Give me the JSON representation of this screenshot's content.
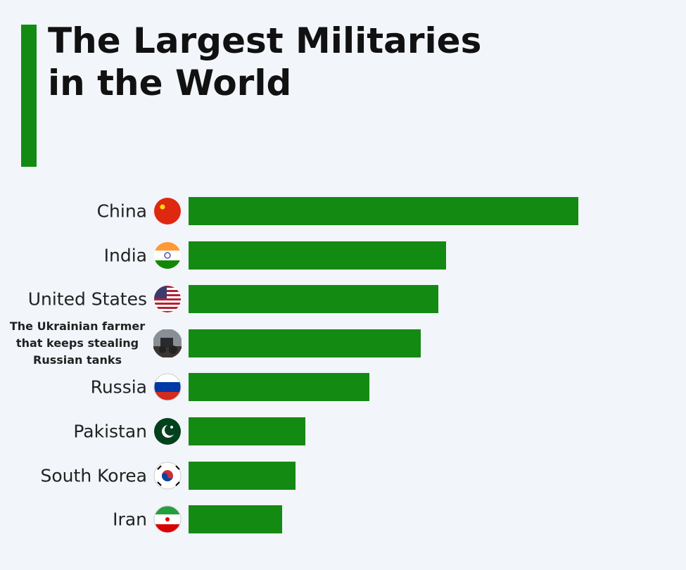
{
  "chart_data": {
    "type": "bar",
    "orientation": "horizontal",
    "title": "The Largest Militaries in the World",
    "categories": [
      "China",
      "India",
      "United States",
      "The Ukrainian farmer that keeps stealing Russian tanks",
      "Russia",
      "Pakistan",
      "South Korea",
      "Iran"
    ],
    "values": [
      2035,
      1344,
      1304,
      1212,
      944,
      610,
      558,
      489
    ],
    "color": "#138a12"
  }
}
